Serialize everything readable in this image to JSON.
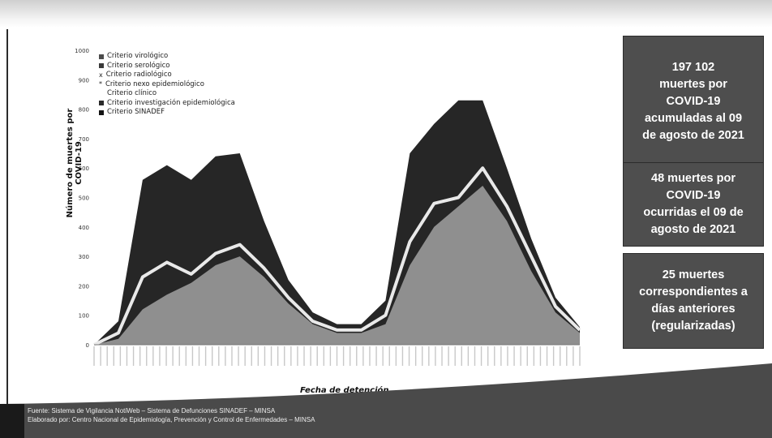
{
  "chart_data": {
    "type": "area",
    "title": "",
    "xlabel": "Fecha de detención",
    "ylabel": "Número de muertes por COVID-19",
    "ylim": [
      0,
      1000
    ],
    "y_ticks": [
      "0",
      "100",
      "200",
      "300",
      "400",
      "500",
      "600",
      "700",
      "800",
      "900",
      "1000"
    ],
    "x_tick_count": 75,
    "legend": {
      "placement": "top-left",
      "items": [
        {
          "label": "Criterio virológico",
          "color": "#4c4c4c",
          "marker": "square"
        },
        {
          "label": "Criterio serológico",
          "color": "#3a3a3a",
          "marker": "square"
        },
        {
          "label": "Criterio radiológico",
          "color": "#777777",
          "marker": "x"
        },
        {
          "label": "Criterio nexo epidemiológico",
          "color": "#cfcfcf",
          "marker": "asterisk"
        },
        {
          "label": "Criterio clínico",
          "color": "#ffffff",
          "marker": "none"
        },
        {
          "label": "Criterio investigación epidemiológica",
          "color": "#2a2a2a",
          "marker": "square"
        },
        {
          "label": "Criterio SINADEF",
          "color": "#141414",
          "marker": "square"
        }
      ]
    },
    "x": [
      0,
      5,
      10,
      15,
      20,
      25,
      30,
      35,
      40,
      45,
      50,
      55,
      60,
      65,
      70,
      75,
      80,
      85,
      90,
      95,
      100
    ],
    "series": [
      {
        "name": "Criterio virológico",
        "values": [
          0,
          20,
          120,
          170,
          210,
          270,
          300,
          230,
          140,
          70,
          40,
          40,
          70,
          270,
          400,
          470,
          540,
          420,
          250,
          110,
          40
        ]
      },
      {
        "name": "Criterio nexo epidemiológico",
        "values": [
          0,
          40,
          230,
          280,
          240,
          310,
          340,
          260,
          160,
          80,
          50,
          50,
          100,
          350,
          480,
          500,
          600,
          470,
          300,
          130,
          50
        ]
      },
      {
        "name": "Criterio SINADEF",
        "values": [
          0,
          80,
          560,
          610,
          560,
          640,
          650,
          420,
          220,
          110,
          70,
          70,
          150,
          650,
          750,
          830,
          830,
          600,
          360,
          160,
          60
        ]
      }
    ]
  },
  "info_boxes": [
    {
      "lines": [
        "197 102",
        "muertes por",
        "COVID-19",
        "acumuladas al 09",
        "de agosto de 2021"
      ]
    },
    {
      "lines": [
        "48 muertes por",
        "COVID-19",
        "ocurridas el 09 de",
        "agosto de 2021"
      ]
    },
    {
      "lines": [
        "25 muertes",
        "correspondientes a",
        "días anteriores",
        "(regularizadas)"
      ]
    }
  ],
  "source": {
    "line1": "Fuente: Sistema de Vigilancia NotiWeb – Sistema de Defunciones SINADEF – MINSA",
    "line2": "Elaborado por: Centro Nacional de Epidemiología, Prevención y Control de Enfermedades – MINSA"
  }
}
